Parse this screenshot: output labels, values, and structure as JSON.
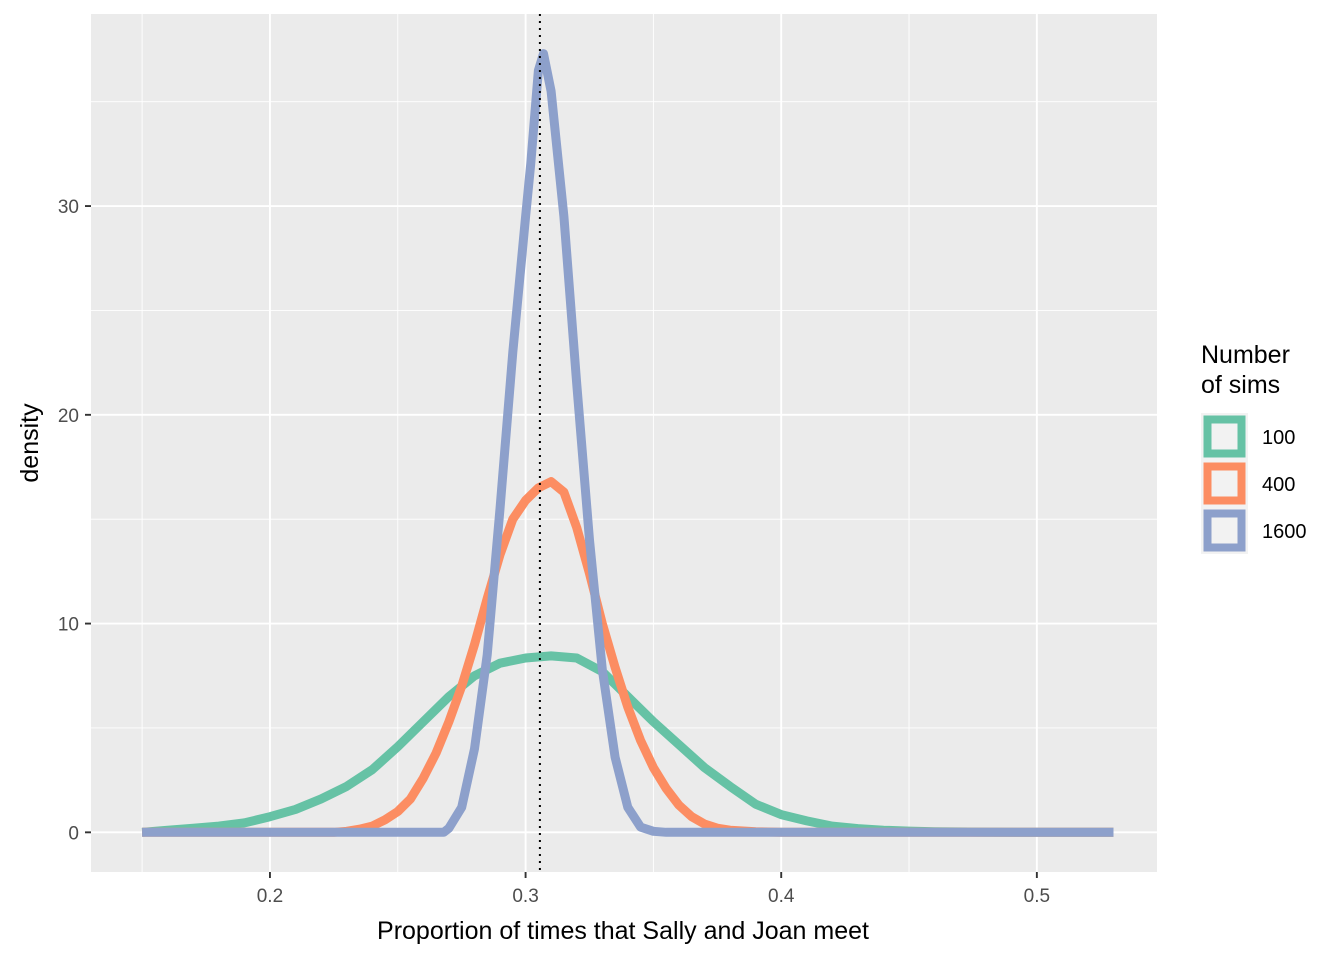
{
  "chart_data": {
    "type": "line",
    "title": "",
    "xlabel": "Proportion of times that Sally and Joan meet",
    "ylabel": "density",
    "xlim": [
      0.13,
      0.547
    ],
    "ylim": [
      -1.9,
      39.2
    ],
    "x_ticks": [
      0.2,
      0.3,
      0.4,
      0.5
    ],
    "x_tick_labels": [
      "0.2",
      "0.3",
      "0.4",
      "0.5"
    ],
    "y_ticks": [
      0,
      10,
      20,
      30
    ],
    "y_tick_labels": [
      "0",
      "10",
      "20",
      "30"
    ],
    "grid": true,
    "legend": {
      "title_lines": [
        "Number",
        "of sims"
      ],
      "placement": "right"
    },
    "reference_line": {
      "x": 0.3056,
      "style": "dotted",
      "color": "#000000"
    },
    "series": [
      {
        "name": "100",
        "color": "#66C2A5",
        "points": [
          [
            0.15,
            0
          ],
          [
            0.16,
            0.1
          ],
          [
            0.17,
            0.2
          ],
          [
            0.18,
            0.3
          ],
          [
            0.19,
            0.45
          ],
          [
            0.2,
            0.75
          ],
          [
            0.21,
            1.1
          ],
          [
            0.22,
            1.6
          ],
          [
            0.23,
            2.2
          ],
          [
            0.24,
            3.0
          ],
          [
            0.25,
            4.1
          ],
          [
            0.26,
            5.3
          ],
          [
            0.27,
            6.5
          ],
          [
            0.28,
            7.5
          ],
          [
            0.29,
            8.1
          ],
          [
            0.3,
            8.35
          ],
          [
            0.31,
            8.45
          ],
          [
            0.32,
            8.35
          ],
          [
            0.33,
            7.7
          ],
          [
            0.34,
            6.5
          ],
          [
            0.35,
            5.3
          ],
          [
            0.36,
            4.2
          ],
          [
            0.37,
            3.1
          ],
          [
            0.38,
            2.2
          ],
          [
            0.39,
            1.35
          ],
          [
            0.4,
            0.85
          ],
          [
            0.41,
            0.55
          ],
          [
            0.42,
            0.3
          ],
          [
            0.43,
            0.18
          ],
          [
            0.44,
            0.1
          ],
          [
            0.45,
            0.06
          ],
          [
            0.46,
            0.03
          ],
          [
            0.48,
            0.01
          ],
          [
            0.5,
            0
          ],
          [
            0.53,
            0
          ]
        ]
      },
      {
        "name": "400",
        "color": "#FC8D62",
        "points": [
          [
            0.15,
            0
          ],
          [
            0.2,
            0
          ],
          [
            0.225,
            0
          ],
          [
            0.23,
            0.05
          ],
          [
            0.235,
            0.15
          ],
          [
            0.24,
            0.3
          ],
          [
            0.245,
            0.6
          ],
          [
            0.25,
            1.0
          ],
          [
            0.255,
            1.6
          ],
          [
            0.26,
            2.6
          ],
          [
            0.265,
            3.8
          ],
          [
            0.27,
            5.3
          ],
          [
            0.275,
            7.0
          ],
          [
            0.28,
            9.0
          ],
          [
            0.285,
            11.2
          ],
          [
            0.29,
            13.3
          ],
          [
            0.295,
            15.0
          ],
          [
            0.3,
            15.9
          ],
          [
            0.305,
            16.5
          ],
          [
            0.31,
            16.8
          ],
          [
            0.315,
            16.3
          ],
          [
            0.32,
            14.6
          ],
          [
            0.325,
            12.4
          ],
          [
            0.33,
            10.0
          ],
          [
            0.335,
            7.9
          ],
          [
            0.34,
            6.0
          ],
          [
            0.345,
            4.4
          ],
          [
            0.35,
            3.1
          ],
          [
            0.355,
            2.1
          ],
          [
            0.36,
            1.3
          ],
          [
            0.365,
            0.75
          ],
          [
            0.37,
            0.4
          ],
          [
            0.375,
            0.2
          ],
          [
            0.38,
            0.1
          ],
          [
            0.39,
            0.03
          ],
          [
            0.4,
            0
          ],
          [
            0.45,
            0
          ],
          [
            0.53,
            0
          ]
        ]
      },
      {
        "name": "1600",
        "color": "#8DA0CB",
        "points": [
          [
            0.15,
            0
          ],
          [
            0.2,
            0
          ],
          [
            0.25,
            0
          ],
          [
            0.268,
            0
          ],
          [
            0.27,
            0.2
          ],
          [
            0.275,
            1.2
          ],
          [
            0.28,
            4.0
          ],
          [
            0.285,
            8.5
          ],
          [
            0.29,
            15.5
          ],
          [
            0.295,
            23.0
          ],
          [
            0.3,
            29.5
          ],
          [
            0.302,
            32.0
          ],
          [
            0.305,
            36.5
          ],
          [
            0.307,
            37.3
          ],
          [
            0.31,
            35.5
          ],
          [
            0.315,
            29.5
          ],
          [
            0.32,
            21.5
          ],
          [
            0.325,
            14.0
          ],
          [
            0.33,
            7.8
          ],
          [
            0.335,
            3.6
          ],
          [
            0.34,
            1.2
          ],
          [
            0.345,
            0.25
          ],
          [
            0.35,
            0.05
          ],
          [
            0.355,
            0
          ],
          [
            0.4,
            0
          ],
          [
            0.45,
            0
          ],
          [
            0.53,
            0
          ]
        ]
      }
    ]
  }
}
